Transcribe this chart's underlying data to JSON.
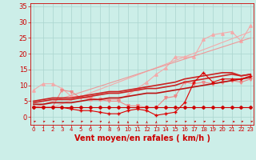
{
  "xlabel": "Vent moyen/en rafales ( km/h )",
  "bg_color": "#cceee8",
  "grid_color": "#aad4ce",
  "axis_color": "#cc0000",
  "x_ticks": [
    0,
    1,
    2,
    3,
    4,
    5,
    6,
    7,
    8,
    9,
    10,
    11,
    12,
    13,
    14,
    15,
    16,
    17,
    18,
    19,
    20,
    21,
    22,
    23
  ],
  "y_ticks": [
    0,
    5,
    10,
    15,
    20,
    25,
    30,
    35
  ],
  "xlim": [
    -0.3,
    23.3
  ],
  "ylim": [
    -2.5,
    36
  ],
  "series": [
    {
      "x": [
        0,
        1,
        2,
        3,
        4,
        5,
        6,
        7,
        8,
        9,
        10,
        11,
        12,
        13,
        14,
        15,
        16,
        17,
        18,
        19,
        20,
        21,
        22,
        23
      ],
      "y": [
        8.5,
        10.5,
        10.5,
        9,
        6.5,
        6.5,
        5.5,
        5.5,
        5.5,
        5.5,
        7,
        9,
        11,
        13.5,
        15.5,
        19,
        19,
        19,
        24.5,
        26,
        26.5,
        27,
        24,
        29
      ],
      "color": "#f4aaaa",
      "linewidth": 0.8,
      "marker": "^",
      "markersize": 2.5,
      "zorder": 2
    },
    {
      "x": [
        0,
        2,
        23
      ],
      "y": [
        3,
        3,
        27
      ],
      "color": "#f4aaaa",
      "linewidth": 0.8,
      "marker": null,
      "markersize": 0,
      "zorder": 2
    },
    {
      "x": [
        0,
        23
      ],
      "y": [
        3,
        25
      ],
      "color": "#ee9999",
      "linewidth": 0.8,
      "marker": null,
      "markersize": 0,
      "zorder": 2
    },
    {
      "x": [
        0,
        1,
        2,
        3,
        4,
        5,
        6,
        7,
        8,
        9,
        10,
        11,
        12,
        13,
        14,
        15,
        16,
        17,
        18,
        19,
        20,
        21,
        22,
        23
      ],
      "y": [
        3,
        3,
        3,
        8.5,
        8,
        6,
        6,
        5.5,
        5,
        5,
        3.5,
        3.5,
        3,
        3,
        6,
        6.5,
        11,
        10.5,
        11,
        10.5,
        11,
        11.5,
        11,
        12
      ],
      "color": "#ee8888",
      "linewidth": 0.8,
      "marker": "v",
      "markersize": 2.5,
      "zorder": 3
    },
    {
      "x": [
        0,
        1,
        2,
        3,
        4,
        5,
        6,
        7,
        8,
        9,
        10,
        11,
        12,
        13,
        14,
        15,
        16,
        17,
        18,
        19,
        20,
        21,
        22,
        23
      ],
      "y": [
        5,
        5.5,
        6,
        6,
        6,
        6.5,
        7,
        7.5,
        8,
        8,
        8.5,
        9,
        9.5,
        10,
        10.5,
        11,
        12,
        12.5,
        13,
        13.5,
        14,
        14,
        13,
        13.5
      ],
      "color": "#cc2222",
      "linewidth": 1.2,
      "marker": null,
      "markersize": 0,
      "zorder": 4
    },
    {
      "x": [
        0,
        1,
        2,
        3,
        4,
        5,
        6,
        7,
        8,
        9,
        10,
        11,
        12,
        13,
        14,
        15,
        16,
        17,
        18,
        19,
        20,
        21,
        22,
        23
      ],
      "y": [
        4.5,
        5,
        5.5,
        5.5,
        5.5,
        6,
        6.5,
        7,
        7.5,
        7.5,
        8,
        8.5,
        9,
        9,
        9.5,
        10,
        11,
        11.5,
        12,
        12.5,
        13,
        13.5,
        13,
        13.5
      ],
      "color": "#cc2222",
      "linewidth": 1.2,
      "marker": null,
      "markersize": 0,
      "zorder": 4
    },
    {
      "x": [
        0,
        1,
        2,
        3,
        4,
        5,
        6,
        7,
        8,
        9,
        10,
        11,
        12,
        13,
        14,
        15,
        16,
        17,
        18,
        19,
        20,
        21,
        22,
        23
      ],
      "y": [
        4,
        4,
        4.5,
        4.5,
        4.5,
        5,
        5.5,
        5.5,
        6,
        6,
        6.5,
        7,
        7.5,
        7.5,
        8,
        8.5,
        9,
        9.5,
        10,
        10.5,
        11,
        11.5,
        12,
        12.5
      ],
      "color": "#bb1111",
      "linewidth": 1.2,
      "marker": null,
      "markersize": 0,
      "zorder": 4
    },
    {
      "x": [
        0,
        1,
        2,
        3,
        4,
        5,
        6,
        7,
        8,
        9,
        10,
        11,
        12,
        13,
        14,
        15,
        16,
        17,
        18,
        19,
        20,
        21,
        22,
        23
      ],
      "y": [
        3,
        3,
        3,
        3,
        2.5,
        2,
        2,
        1.5,
        1,
        1,
        2,
        2.5,
        2,
        0.5,
        1,
        1.5,
        4.5,
        11,
        14,
        11,
        12,
        12,
        12,
        13
      ],
      "color": "#dd0000",
      "linewidth": 0.8,
      "marker": "+",
      "markersize": 3,
      "zorder": 5
    },
    {
      "x": [
        0,
        1,
        2,
        3,
        4,
        5,
        6,
        7,
        8,
        9,
        10,
        11,
        12,
        13,
        14,
        15,
        16,
        17,
        18,
        19,
        20,
        21,
        22,
        23
      ],
      "y": [
        3,
        3,
        3,
        3,
        3,
        3,
        3,
        3,
        3,
        3,
        3,
        3,
        3,
        3,
        3,
        3,
        3,
        3,
        3,
        3,
        3,
        3,
        3,
        3
      ],
      "color": "#cc0000",
      "linewidth": 0.8,
      "marker": "D",
      "markersize": 2,
      "zorder": 5
    }
  ],
  "xlabel_color": "#cc0000",
  "xlabel_fontsize": 7,
  "tick_fontsize": 6,
  "tick_color": "#cc0000"
}
